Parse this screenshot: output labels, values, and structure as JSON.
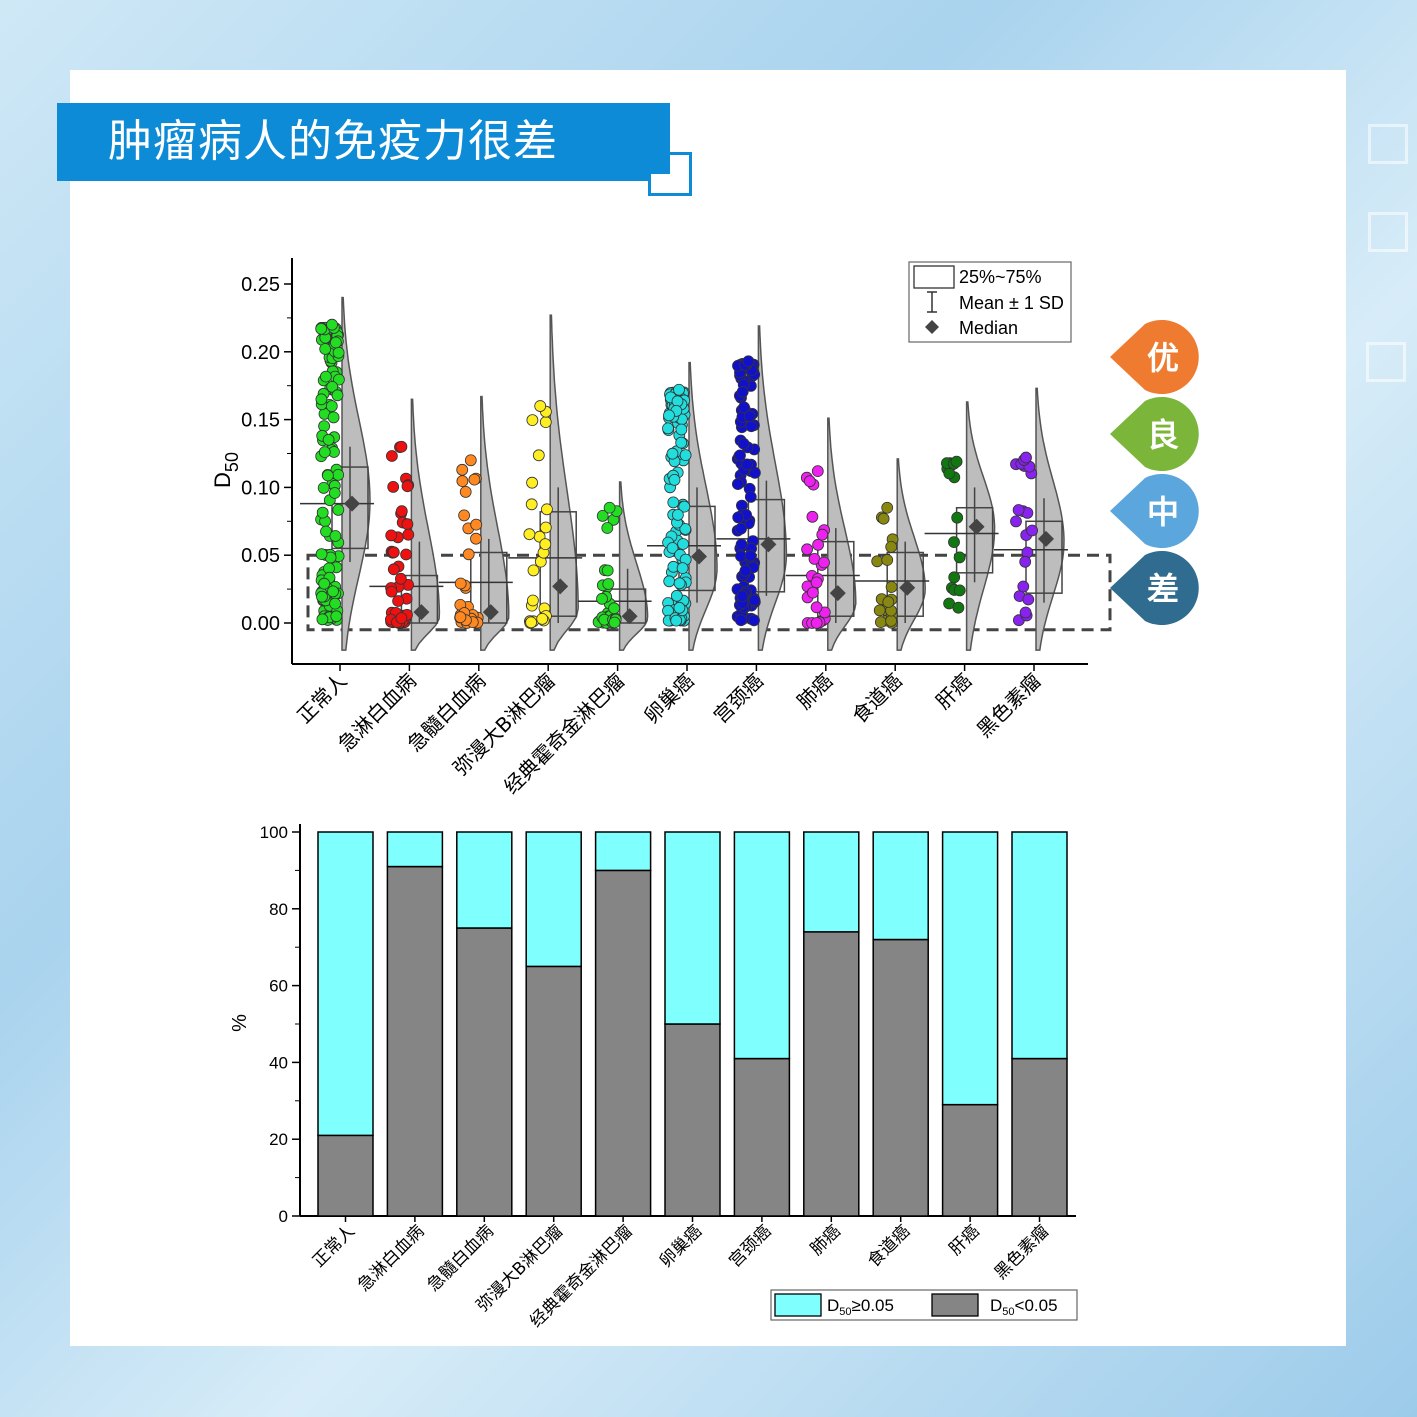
{
  "header": {
    "title": "肿瘤病人的免疫力很差"
  },
  "badges": [
    {
      "label": "优",
      "color": "#ee7b30"
    },
    {
      "label": "良",
      "color": "#7bb63a"
    },
    {
      "label": "中",
      "color": "#5aa6dd"
    },
    {
      "label": "差",
      "color": "#2f6c90"
    }
  ],
  "chart_data": [
    {
      "type": "raincloud",
      "ylabel_main": "D",
      "ylabel_sub": "50",
      "ylim": [
        -0.02,
        0.27
      ],
      "yticks": [
        "0.00",
        "0.05",
        "0.10",
        "0.15",
        "0.20",
        "0.25"
      ],
      "threshold_box": [
        -0.005,
        0.05
      ],
      "legend": {
        "box": "25%~75%",
        "sd": "Mean ± 1 SD",
        "median": "Median"
      },
      "groups": [
        {
          "name": "正常人",
          "color": "#22dd22",
          "n": 130,
          "min": 0.0,
          "max": 0.22,
          "q1": 0.055,
          "q3": 0.115,
          "mean": 0.088,
          "median": 0.088,
          "sd_low": 0.045,
          "sd_high": 0.13,
          "violin_min": -0.02,
          "violin_max": 0.24,
          "peak": 0.09
        },
        {
          "name": "急淋白血病",
          "color": "#ee1111",
          "n": 45,
          "min": 0.0,
          "max": 0.13,
          "q1": 0.0,
          "q3": 0.035,
          "mean": 0.027,
          "median": 0.008,
          "sd_low": 0.0,
          "sd_high": 0.06,
          "violin_min": -0.02,
          "violin_max": 0.165,
          "peak": 0.005
        },
        {
          "name": "急髓白血病",
          "color": "#ff8820",
          "n": 30,
          "min": 0.0,
          "max": 0.12,
          "q1": 0.0,
          "q3": 0.052,
          "mean": 0.03,
          "median": 0.008,
          "sd_low": 0.0,
          "sd_high": 0.062,
          "violin_min": -0.02,
          "violin_max": 0.167,
          "peak": 0.005
        },
        {
          "name": "弥漫大B淋巴瘤",
          "color": "#ffee22",
          "n": 25,
          "min": 0.0,
          "max": 0.16,
          "q1": 0.005,
          "q3": 0.082,
          "mean": 0.048,
          "median": 0.027,
          "sd_low": 0.0,
          "sd_high": 0.1,
          "violin_min": -0.02,
          "violin_max": 0.227,
          "peak": 0.01
        },
        {
          "name": "经典霍奇金淋巴瘤",
          "color": "#22dd22",
          "n": 30,
          "min": 0.0,
          "max": 0.085,
          "q1": 0.0,
          "q3": 0.025,
          "mean": 0.016,
          "median": 0.005,
          "sd_low": 0.0,
          "sd_high": 0.04,
          "violin_min": -0.02,
          "violin_max": 0.104,
          "peak": 0.004
        },
        {
          "name": "卵巢癌",
          "color": "#22dddd",
          "n": 110,
          "min": 0.0,
          "max": 0.172,
          "q1": 0.024,
          "q3": 0.086,
          "mean": 0.057,
          "median": 0.049,
          "sd_low": 0.015,
          "sd_high": 0.1,
          "violin_min": -0.02,
          "violin_max": 0.192,
          "peak": 0.04
        },
        {
          "name": "宫颈癌",
          "color": "#1111cc",
          "n": 110,
          "min": 0.0,
          "max": 0.193,
          "q1": 0.023,
          "q3": 0.091,
          "mean": 0.062,
          "median": 0.058,
          "sd_low": 0.02,
          "sd_high": 0.105,
          "violin_min": -0.02,
          "violin_max": 0.219,
          "peak": 0.05
        },
        {
          "name": "肺癌",
          "color": "#ee22ee",
          "n": 25,
          "min": 0.0,
          "max": 0.112,
          "q1": 0.005,
          "q3": 0.06,
          "mean": 0.035,
          "median": 0.022,
          "sd_low": 0.0,
          "sd_high": 0.07,
          "violin_min": -0.02,
          "violin_max": 0.151,
          "peak": 0.015
        },
        {
          "name": "食道癌",
          "color": "#888811",
          "n": 18,
          "min": 0.0,
          "max": 0.085,
          "q1": 0.005,
          "q3": 0.052,
          "mean": 0.031,
          "median": 0.026,
          "sd_low": 0.0,
          "sd_high": 0.06,
          "violin_min": -0.02,
          "violin_max": 0.121,
          "peak": 0.025
        },
        {
          "name": "肝癌",
          "color": "#117711",
          "n": 16,
          "min": 0.01,
          "max": 0.119,
          "q1": 0.037,
          "q3": 0.085,
          "mean": 0.066,
          "median": 0.071,
          "sd_low": 0.03,
          "sd_high": 0.1,
          "violin_min": -0.02,
          "violin_max": 0.163,
          "peak": 0.07
        },
        {
          "name": "黑色素瘤",
          "color": "#8822ee",
          "n": 20,
          "min": 0.0,
          "max": 0.122,
          "q1": 0.022,
          "q3": 0.075,
          "mean": 0.054,
          "median": 0.062,
          "sd_low": 0.015,
          "sd_high": 0.092,
          "violin_min": -0.02,
          "violin_max": 0.173,
          "peak": 0.06
        }
      ]
    },
    {
      "type": "stacked_bar",
      "ylabel": "%",
      "ylim": [
        0,
        100
      ],
      "yticks": [
        "0",
        "20",
        "40",
        "60",
        "80",
        "100"
      ],
      "categories": [
        "正常人",
        "急淋白血病",
        "急髓白血病",
        "弥漫大B淋巴瘤",
        "经典霍奇金淋巴瘤",
        "卵巢癌",
        "宫颈癌",
        "肺癌",
        "食道癌",
        "肝癌",
        "黑色素瘤"
      ],
      "series": [
        {
          "legend_main": "D",
          "legend_sub": "50",
          "legend_suffix": "<0.05",
          "color": "#858585",
          "values": [
            21,
            91,
            75,
            65,
            90,
            50,
            41,
            74,
            72,
            29,
            41
          ]
        },
        {
          "legend_main": "D",
          "legend_sub": "50",
          "legend_suffix": "≥0.05",
          "color": "#80ffff",
          "values": [
            79,
            9,
            25,
            35,
            10,
            50,
            59,
            26,
            28,
            71,
            59
          ]
        }
      ]
    }
  ]
}
